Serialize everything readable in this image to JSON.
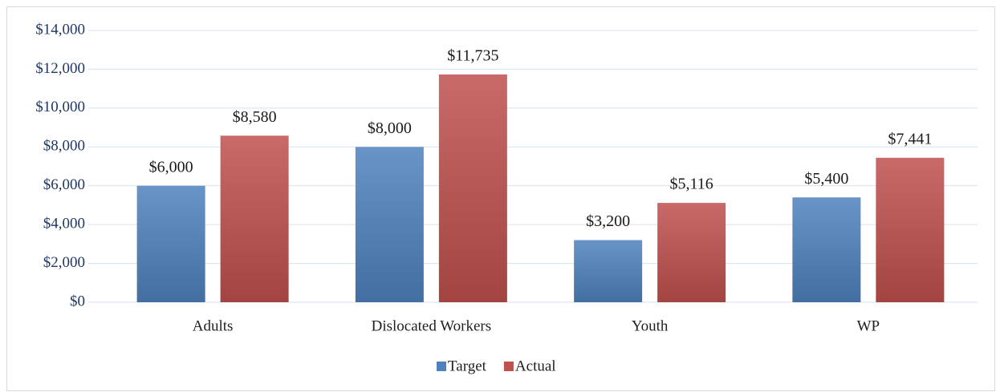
{
  "chart_data": {
    "type": "bar",
    "categories": [
      "Adults",
      "Dislocated Workers",
      "Youth",
      "WP"
    ],
    "series": [
      {
        "name": "Target",
        "color": "#4f81bd",
        "values": [
          6000,
          8000,
          3200,
          5400
        ],
        "value_labels": [
          "$6,000",
          "$8,000",
          "$3,200",
          "$5,400"
        ]
      },
      {
        "name": "Actual",
        "color": "#c0504d",
        "values": [
          8580,
          11735,
          5116,
          7441
        ],
        "value_labels": [
          "$8,580",
          "$11,735",
          "$5,116",
          "$7,441"
        ]
      }
    ],
    "ylim": [
      0,
      14000
    ],
    "yticks": [
      {
        "value": 0,
        "label": "$0"
      },
      {
        "value": 2000,
        "label": "$2,000"
      },
      {
        "value": 4000,
        "label": "$4,000"
      },
      {
        "value": 6000,
        "label": "$6,000"
      },
      {
        "value": 8000,
        "label": "$8,000"
      },
      {
        "value": 10000,
        "label": "$10,000"
      },
      {
        "value": 12000,
        "label": "$12,000"
      },
      {
        "value": 14000,
        "label": "$14,000"
      }
    ],
    "grid": true,
    "legend": "bottom"
  }
}
